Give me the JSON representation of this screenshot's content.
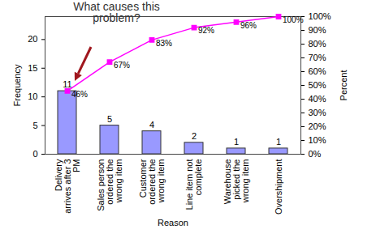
{
  "chart_data": {
    "type": "bar",
    "annotation": "What causes this problem?",
    "x_label": "Reason",
    "y_label": "Frequency",
    "y2_label": "Percent",
    "categories": [
      "Delivery arrives after 3 PM",
      "Sales person ordered the wrong item",
      "Customer ordered the wrong item",
      "Line item not complete",
      "Warehouse picked the wrong item",
      "Overshipment"
    ],
    "series": [
      {
        "name": "Frequency",
        "type": "bar",
        "color": "#9999ff",
        "values": [
          11,
          5,
          4,
          2,
          1,
          1
        ]
      },
      {
        "name": "Percent",
        "type": "line",
        "axis": "y2",
        "color": "#ff00ff",
        "marker": "square",
        "values": [
          46,
          67,
          83,
          92,
          96,
          100
        ],
        "value_labels": [
          "46%",
          "67%",
          "83%",
          "92%",
          "96%",
          "100%"
        ]
      }
    ],
    "ylim": [
      0,
      24
    ],
    "yticks": [
      0,
      5,
      10,
      15,
      20
    ],
    "y2lim": [
      0,
      100
    ],
    "y2ticks": [
      {
        "value": 0,
        "label": "0%"
      },
      {
        "value": 10,
        "label": "10%"
      },
      {
        "value": 20,
        "label": "20%"
      },
      {
        "value": 30,
        "label": "30%"
      },
      {
        "value": 40,
        "label": "40%"
      },
      {
        "value": 50,
        "label": "50%"
      },
      {
        "value": 60,
        "label": "60%"
      },
      {
        "value": 70,
        "label": "70%"
      },
      {
        "value": 80,
        "label": "80%"
      },
      {
        "value": 90,
        "label": "90%"
      },
      {
        "value": 100,
        "label": "100%"
      }
    ],
    "data_labels": true,
    "grid": false
  }
}
